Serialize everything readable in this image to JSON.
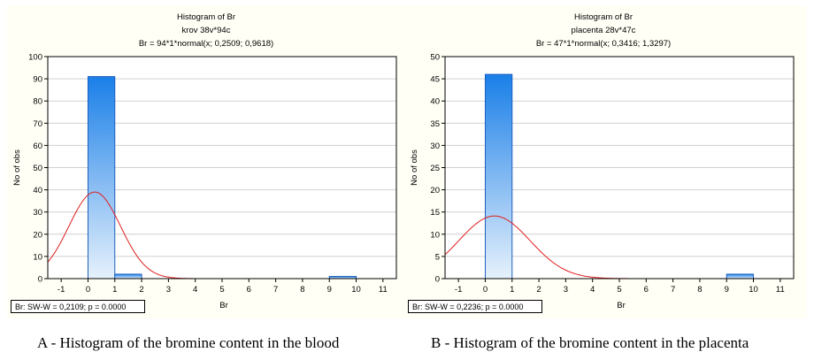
{
  "chart_data": [
    {
      "type": "bar",
      "title": "Histogram of Br",
      "subtitle": "krov 38v*94c",
      "fit_label": "Br = 94*1*normal(x; 0,2509; 0,9618)",
      "xlabel": "Br",
      "ylabel": "No of obs",
      "xlim": [
        -1.5,
        11.5
      ],
      "ylim": [
        0,
        100
      ],
      "x_ticks": [
        -1,
        0,
        1,
        2,
        3,
        4,
        5,
        6,
        7,
        8,
        9,
        10,
        11
      ],
      "y_ticks": [
        0,
        10,
        20,
        30,
        40,
        50,
        60,
        70,
        80,
        90,
        100
      ],
      "bins": [
        {
          "from": 0,
          "to": 1,
          "count": 91
        },
        {
          "from": 1,
          "to": 2,
          "count": 2
        },
        {
          "from": 9,
          "to": 10,
          "count": 1
        }
      ],
      "normal_fit": {
        "n": 94,
        "bin_width": 1,
        "mean": 0.2509,
        "sd": 0.9618
      },
      "stats_label": "Br:   SW-W = 0,2109; p = 0.0000",
      "caption": "A - Histogram of the bromine content in the blood",
      "grid": true
    },
    {
      "type": "bar",
      "title": "Histogram of Br",
      "subtitle": "placenta 28v*47c",
      "fit_label": "Br = 47*1*normal(x; 0,3416; 1,3297)",
      "xlabel": "Br",
      "ylabel": "No of obs",
      "xlim": [
        -1.5,
        11.5
      ],
      "ylim": [
        0,
        50
      ],
      "x_ticks": [
        -1,
        0,
        1,
        2,
        3,
        4,
        5,
        6,
        7,
        8,
        9,
        10,
        11
      ],
      "y_ticks": [
        0,
        5,
        10,
        15,
        20,
        25,
        30,
        35,
        40,
        45,
        50
      ],
      "bins": [
        {
          "from": 0,
          "to": 1,
          "count": 46
        },
        {
          "from": 9,
          "to": 10,
          "count": 1
        }
      ],
      "normal_fit": {
        "n": 47,
        "bin_width": 1,
        "mean": 0.3416,
        "sd": 1.3297
      },
      "stats_label": "Br:   SW-W = 0,2236; p = 0.0000",
      "caption": "B - Histogram of the bromine content in the placenta",
      "grid": true
    }
  ],
  "colors": {
    "bar_top": "#1a7fe8",
    "bar_bottom": "#e6f1fc",
    "bar_stroke": "#1f5fbf",
    "curve": "#e02020",
    "grid": "#d0d0d0",
    "panel_bg": "#fffff6"
  }
}
